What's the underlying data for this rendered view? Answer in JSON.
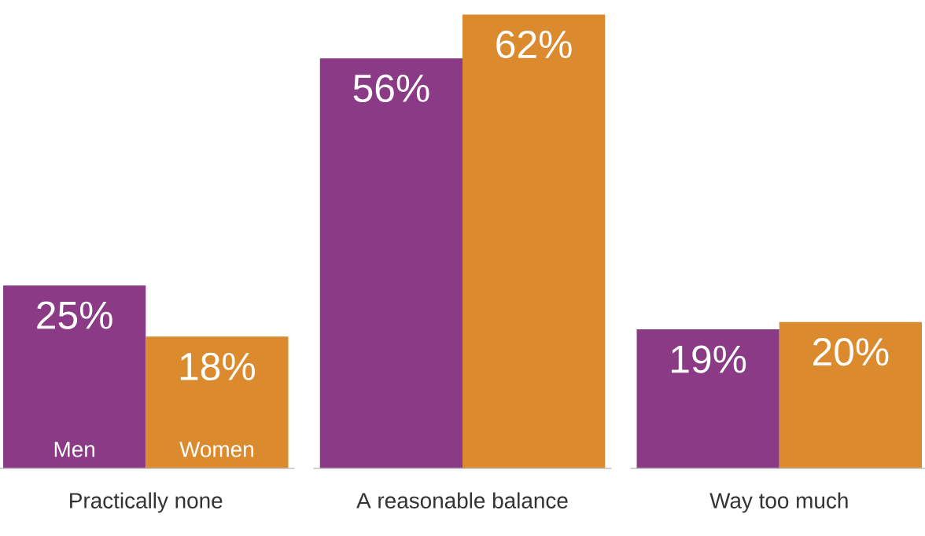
{
  "chart_data": {
    "type": "bar",
    "categories": [
      "Practically none",
      "A reasonable balance",
      "Way too much"
    ],
    "series": [
      {
        "name": "Men",
        "color": "#8b3a86",
        "values": [
          25,
          56,
          19
        ],
        "value_labels": [
          "25%",
          "56%",
          "19%"
        ]
      },
      {
        "name": "Women",
        "color": "#dc8a2e",
        "values": [
          18,
          62,
          20
        ],
        "value_labels": [
          "18%",
          "62%",
          "20%"
        ]
      }
    ],
    "legend": false
  }
}
